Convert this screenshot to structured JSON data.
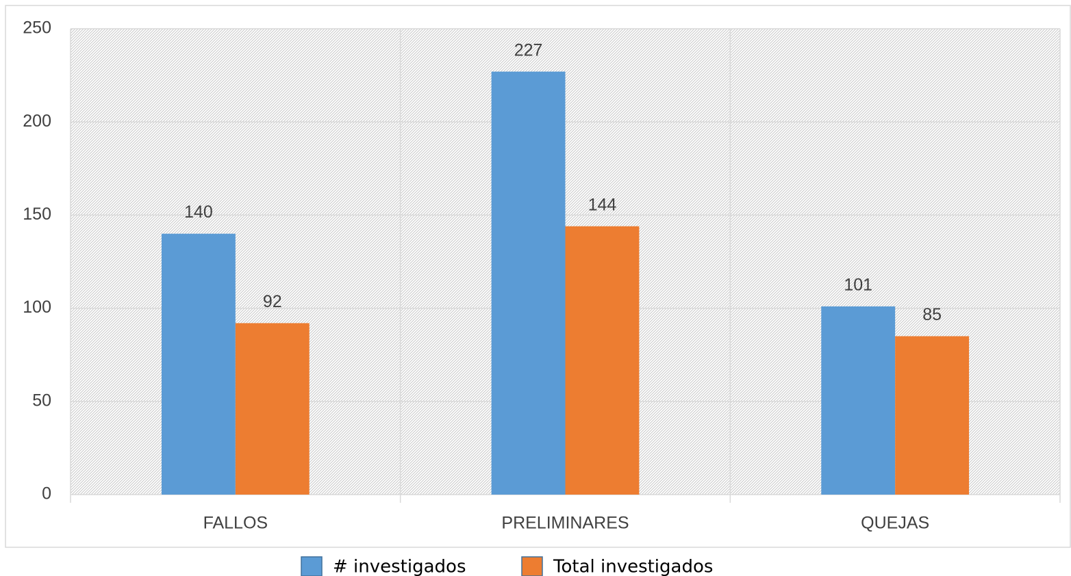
{
  "chart_data": {
    "type": "bar",
    "categories": [
      "FALLOS",
      "PRELIMINARES",
      "QUEJAS"
    ],
    "series": [
      {
        "name": "# investigados",
        "color": "#5b9bd5",
        "values": [
          140,
          227,
          101
        ]
      },
      {
        "name": "Total investigados",
        "color": "#ed7d31",
        "values": [
          92,
          144,
          85
        ]
      }
    ],
    "ylim": [
      0,
      250
    ],
    "yticks": [
      0,
      50,
      100,
      150,
      200,
      250
    ],
    "grid": true,
    "legend": "bottom"
  }
}
